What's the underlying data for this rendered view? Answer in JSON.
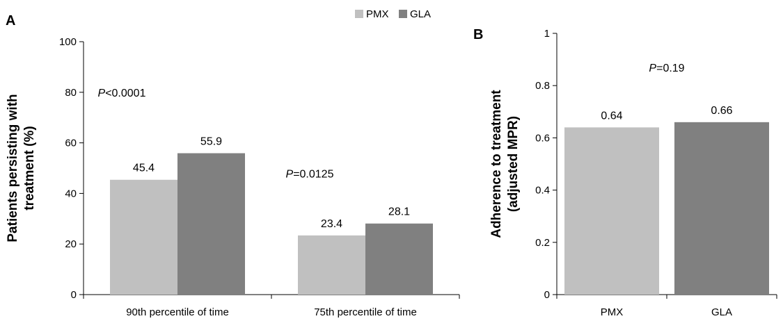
{
  "colors": {
    "PMX": "#c0c0c0",
    "GLA": "#808080",
    "axis": "#000000"
  },
  "chart_data": [
    {
      "panel": "A",
      "type": "bar",
      "ylabel": [
        "Patients persisting with",
        "treatment (%)"
      ],
      "ylim": [
        0,
        100
      ],
      "yticks": [
        0,
        20,
        40,
        60,
        80,
        100
      ],
      "categories": [
        "90th percentile of time",
        "75th percentile of time"
      ],
      "series": [
        {
          "name": "PMX",
          "values": [
            45.4,
            23.4
          ],
          "labels": [
            "45.4",
            "23.4"
          ]
        },
        {
          "name": "GLA",
          "values": [
            55.9,
            28.1
          ],
          "labels": [
            "55.9",
            "28.1"
          ]
        }
      ],
      "legend": [
        "PMX",
        "GLA"
      ],
      "legend_position": "top-right",
      "annotations": [
        {
          "italic": "P",
          "text": "<0.0001",
          "x_category": 0,
          "y": 80
        },
        {
          "italic": "P",
          "text": "=0.0125",
          "x_category": 1,
          "y": 48
        }
      ]
    },
    {
      "panel": "B",
      "type": "bar",
      "ylabel": [
        "Adherence to treatment",
        "(adjusted MPR)"
      ],
      "ylim": [
        0,
        1
      ],
      "yticks": [
        0,
        0.2,
        0.4,
        0.6,
        0.8,
        1
      ],
      "ytick_labels": [
        "0",
        "0.2",
        "0.4",
        "0.6",
        "0.8",
        "1"
      ],
      "categories": [
        "PMX",
        "GLA"
      ],
      "series": [
        {
          "name": "",
          "values": [
            0.64,
            0.66
          ],
          "labels": [
            "0.64",
            "0.66"
          ]
        }
      ],
      "annotations": [
        {
          "italic": "P",
          "text": "=0.19",
          "y": 0.87
        }
      ]
    }
  ]
}
